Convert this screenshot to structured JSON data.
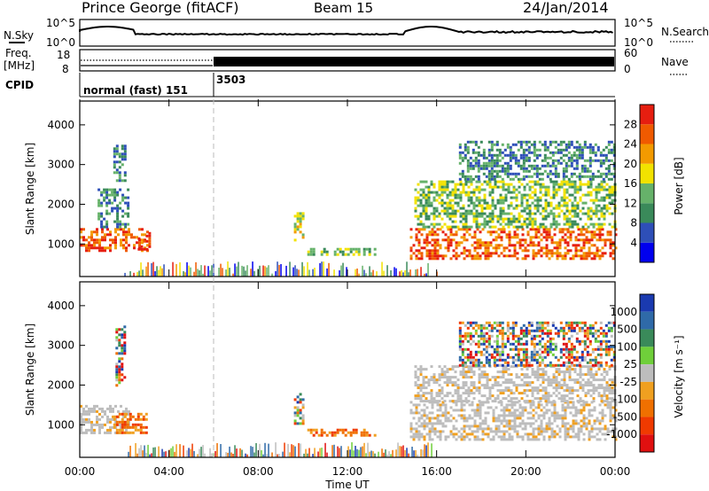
{
  "header": {
    "station": "Prince George (fitACF)",
    "beam": "Beam 15",
    "date": "24/Jan/2014"
  },
  "summary": {
    "nsky_label": "N.Sky",
    "nsearch_label": "N.Search",
    "ns_tick_top": "10^5",
    "ns_tick_bottom": "10^0",
    "freq_label": "Freq.",
    "freq_unit": "[MHz]",
    "freq_ticks": [
      "18",
      "8"
    ],
    "nave_label": "Nave",
    "nave_ticks": [
      "60",
      "0"
    ],
    "cpid_label": "CPID",
    "cpid_entries": [
      {
        "name": "normal (fast) 151",
        "start": "00:00",
        "end": "06:00"
      },
      {
        "name": "3503",
        "start": "06:00",
        "end": "24:00"
      }
    ],
    "mode_change_time": "06:00"
  },
  "chart_data": [
    {
      "type": "heatmap",
      "quantity": "Power",
      "ylabel": "Slant Range [km]",
      "xlabel": "",
      "ylim": [
        180,
        4600
      ],
      "xlim": [
        "00:00",
        "24:00"
      ],
      "yticks": [
        "1000",
        "2000",
        "3000",
        "4000"
      ],
      "colorbar": {
        "label": "Power [dB]",
        "ticks": [
          "4",
          "8",
          "12",
          "16",
          "20",
          "24",
          "28"
        ],
        "colors": [
          "#0000ee",
          "#2e4fb8",
          "#3a8a5a",
          "#66b26a",
          "#f2e200",
          "#f39a00",
          "#f05a00",
          "#e61e10"
        ]
      },
      "echo_regions": [
        {
          "t_start": 0.0,
          "t_end": 3.0,
          "r_start": 800,
          "r_end": 1400,
          "level": 6
        },
        {
          "t_start": 0.8,
          "t_end": 2.2,
          "r_start": 1400,
          "r_end": 2400,
          "level": 2
        },
        {
          "t_start": 1.5,
          "t_end": 2.0,
          "r_start": 2600,
          "r_end": 3500,
          "level": 2
        },
        {
          "t_start": 2.6,
          "t_end": 3.1,
          "r_start": 850,
          "r_end": 1300,
          "level": 7
        },
        {
          "t_start": 9.6,
          "t_end": 10.0,
          "r_start": 1000,
          "r_end": 1800,
          "level": 4
        },
        {
          "t_start": 10.2,
          "t_end": 13.2,
          "r_start": 700,
          "r_end": 900,
          "level": 3
        },
        {
          "t_start": 14.8,
          "t_end": 24.0,
          "r_start": 600,
          "r_end": 1400,
          "level": 6
        },
        {
          "t_start": 15.0,
          "t_end": 24.0,
          "r_start": 1400,
          "r_end": 2600,
          "level": 3
        },
        {
          "t_start": 17.0,
          "t_end": 24.0,
          "r_start": 2600,
          "r_end": 3600,
          "level": 2
        }
      ],
      "ground_scatter_band": {
        "t_start": 2.0,
        "t_end": 16.0,
        "r_start": 180,
        "r_end": 500
      }
    },
    {
      "type": "heatmap",
      "quantity": "Velocity",
      "ylabel": "Slant Range [km]",
      "xlabel": "Time UT",
      "ylim": [
        180,
        4600
      ],
      "xlim": [
        "00:00",
        "24:00"
      ],
      "xticks": [
        "00:00",
        "04:00",
        "08:00",
        "12:00",
        "16:00",
        "20:00",
        "00:00"
      ],
      "yticks": [
        "1000",
        "2000",
        "3000",
        "4000"
      ],
      "colorbar": {
        "label": "Velocity [m s^-1]",
        "ticks": [
          "1000",
          "500",
          "100",
          "25",
          "-25",
          "-100",
          "-500",
          "-1000"
        ],
        "colors": [
          "#1a3ab0",
          "#2f6aa8",
          "#3a8a5a",
          "#6fcf3a",
          "#bdbdbd",
          "#f0a020",
          "#f07000",
          "#f03a00",
          "#e01010"
        ]
      },
      "echo_regions": [
        {
          "t_start": 0.0,
          "t_end": 2.2,
          "r_start": 800,
          "r_end": 1500,
          "level": "ground"
        },
        {
          "t_start": 1.5,
          "t_end": 3.0,
          "r_start": 800,
          "r_end": 1300,
          "level": "negative"
        },
        {
          "t_start": 1.6,
          "t_end": 2.0,
          "r_start": 2000,
          "r_end": 3500,
          "level": "mixed"
        },
        {
          "t_start": 9.6,
          "t_end": 10.0,
          "r_start": 1000,
          "r_end": 1800,
          "level": "mixed"
        },
        {
          "t_start": 10.2,
          "t_end": 13.2,
          "r_start": 700,
          "r_end": 900,
          "level": "negative"
        },
        {
          "t_start": 14.8,
          "t_end": 24.0,
          "r_start": 600,
          "r_end": 1600,
          "level": "ground"
        },
        {
          "t_start": 15.0,
          "t_end": 24.0,
          "r_start": 1600,
          "r_end": 2500,
          "level": "ground"
        },
        {
          "t_start": 17.0,
          "t_end": 24.0,
          "r_start": 2500,
          "r_end": 3600,
          "level": "mixed"
        }
      ]
    }
  ]
}
